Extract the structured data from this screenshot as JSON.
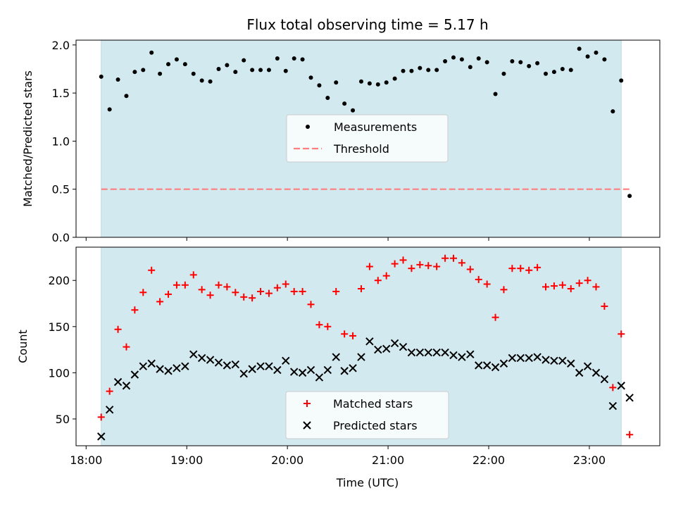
{
  "chart_data": {
    "type": "scatter",
    "title": "Flux total observing time = 5.17 h",
    "xlabel": "Time (UTC)",
    "x_ticks": [
      "18:00",
      "19:00",
      "20:00",
      "21:00",
      "22:00",
      "23:00"
    ],
    "x_range": [
      "17:54",
      "23:42"
    ],
    "observing_window": [
      "18:09",
      "23:19"
    ],
    "shade_color": "#d2e9ef",
    "panels": [
      {
        "ylabel": "Matched/Predicted stars",
        "ylim": [
          0,
          2.05
        ],
        "yticks": [
          "0.0",
          "0.5",
          "1.0",
          "1.5",
          "2.0"
        ],
        "legend_position": "center",
        "legend": [
          "Measurements",
          "Threshold"
        ],
        "threshold": {
          "value": 0.5,
          "x_start": "18:09",
          "x_end": "23:25",
          "color": "#ff7f7f",
          "style": "dashed"
        },
        "series": [
          {
            "name": "Measurements",
            "marker": "dot",
            "color": "#000000",
            "x": [
              "18:09",
              "18:14",
              "18:19",
              "18:24",
              "18:29",
              "18:34",
              "18:39",
              "18:44",
              "18:49",
              "18:54",
              "18:59",
              "19:04",
              "19:09",
              "19:14",
              "19:19",
              "19:24",
              "19:29",
              "19:34",
              "19:39",
              "19:44",
              "19:49",
              "19:54",
              "19:59",
              "20:04",
              "20:09",
              "20:14",
              "20:19",
              "20:24",
              "20:29",
              "20:34",
              "20:39",
              "20:44",
              "20:49",
              "20:54",
              "20:59",
              "21:04",
              "21:09",
              "21:14",
              "21:19",
              "21:24",
              "21:29",
              "21:34",
              "21:39",
              "21:44",
              "21:49",
              "21:54",
              "21:59",
              "22:04",
              "22:09",
              "22:14",
              "22:19",
              "22:24",
              "22:29",
              "22:34",
              "22:39",
              "22:44",
              "22:49",
              "22:54",
              "22:59",
              "23:04",
              "23:09",
              "23:14",
              "23:19",
              "23:24"
            ],
            "y": [
              1.67,
              1.33,
              1.64,
              1.47,
              1.72,
              1.74,
              1.92,
              1.7,
              1.8,
              1.85,
              1.8,
              1.7,
              1.63,
              1.62,
              1.75,
              1.79,
              1.72,
              1.84,
              1.74,
              1.74,
              1.74,
              1.86,
              1.73,
              1.86,
              1.85,
              1.66,
              1.58,
              1.45,
              1.61,
              1.39,
              1.32,
              1.62,
              1.6,
              1.59,
              1.61,
              1.65,
              1.73,
              1.73,
              1.76,
              1.74,
              1.74,
              1.83,
              1.87,
              1.85,
              1.77,
              1.86,
              1.82,
              1.49,
              1.7,
              1.83,
              1.82,
              1.78,
              1.81,
              1.7,
              1.72,
              1.75,
              1.74,
              1.96,
              1.88,
              1.92,
              1.85,
              1.31,
              1.63,
              0.43
            ]
          }
        ]
      },
      {
        "ylabel": "Count",
        "ylim": [
          21,
          236
        ],
        "yticks": [
          "50",
          "100",
          "150",
          "200"
        ],
        "legend_position": "lower center",
        "legend": [
          "Matched stars",
          "Predicted stars"
        ],
        "series": [
          {
            "name": "Matched stars",
            "marker": "plus",
            "color": "#ff0000",
            "x": [
              "18:09",
              "18:14",
              "18:19",
              "18:24",
              "18:29",
              "18:34",
              "18:39",
              "18:44",
              "18:49",
              "18:54",
              "18:59",
              "19:04",
              "19:09",
              "19:14",
              "19:19",
              "19:24",
              "19:29",
              "19:34",
              "19:39",
              "19:44",
              "19:49",
              "19:54",
              "19:59",
              "20:04",
              "20:09",
              "20:14",
              "20:19",
              "20:24",
              "20:29",
              "20:34",
              "20:39",
              "20:44",
              "20:49",
              "20:54",
              "20:59",
              "21:04",
              "21:09",
              "21:14",
              "21:19",
              "21:24",
              "21:29",
              "21:34",
              "21:39",
              "21:44",
              "21:49",
              "21:54",
              "21:59",
              "22:04",
              "22:09",
              "22:14",
              "22:19",
              "22:24",
              "22:29",
              "22:34",
              "22:39",
              "22:44",
              "22:49",
              "22:54",
              "22:59",
              "23:04",
              "23:09",
              "23:14",
              "23:19",
              "23:24"
            ],
            "y": [
              52,
              80,
              147,
              128,
              168,
              187,
              211,
              177,
              185,
              195,
              195,
              206,
              190,
              184,
              195,
              193,
              187,
              182,
              181,
              188,
              186,
              192,
              196,
              188,
              188,
              174,
              152,
              150,
              188,
              142,
              140,
              191,
              215,
              200,
              205,
              218,
              222,
              213,
              217,
              216,
              215,
              224,
              224,
              219,
              212,
              201,
              196,
              160,
              190,
              213,
              213,
              211,
              214,
              193,
              194,
              195,
              191,
              197,
              200,
              193,
              172,
              84,
              142,
              33
            ]
          },
          {
            "name": "Predicted stars",
            "marker": "x",
            "color": "#000000",
            "x": [
              "18:09",
              "18:14",
              "18:19",
              "18:24",
              "18:29",
              "18:34",
              "18:39",
              "18:44",
              "18:49",
              "18:54",
              "18:59",
              "19:04",
              "19:09",
              "19:14",
              "19:19",
              "19:24",
              "19:29",
              "19:34",
              "19:39",
              "19:44",
              "19:49",
              "19:54",
              "19:59",
              "20:04",
              "20:09",
              "20:14",
              "20:19",
              "20:24",
              "20:29",
              "20:34",
              "20:39",
              "20:44",
              "20:49",
              "20:54",
              "20:59",
              "21:04",
              "21:09",
              "21:14",
              "21:19",
              "21:24",
              "21:29",
              "21:34",
              "21:39",
              "21:44",
              "21:49",
              "21:54",
              "21:59",
              "22:04",
              "22:09",
              "22:14",
              "22:19",
              "22:24",
              "22:29",
              "22:34",
              "22:39",
              "22:44",
              "22:49",
              "22:54",
              "22:59",
              "23:04",
              "23:09",
              "23:14",
              "23:19",
              "23:24"
            ],
            "y": [
              31,
              60,
              90,
              86,
              98,
              107,
              110,
              104,
              102,
              105,
              107,
              120,
              116,
              114,
              111,
              108,
              109,
              99,
              104,
              107,
              107,
              103,
              113,
              101,
              100,
              103,
              95,
              103,
              117,
              102,
              105,
              117,
              134,
              125,
              126,
              132,
              128,
              122,
              122,
              122,
              122,
              122,
              119,
              117,
              120,
              108,
              108,
              106,
              110,
              116,
              116,
              116,
              117,
              114,
              113,
              113,
              110,
              100,
              107,
              100,
              93,
              64,
              86,
              73
            ]
          }
        ]
      }
    ]
  }
}
